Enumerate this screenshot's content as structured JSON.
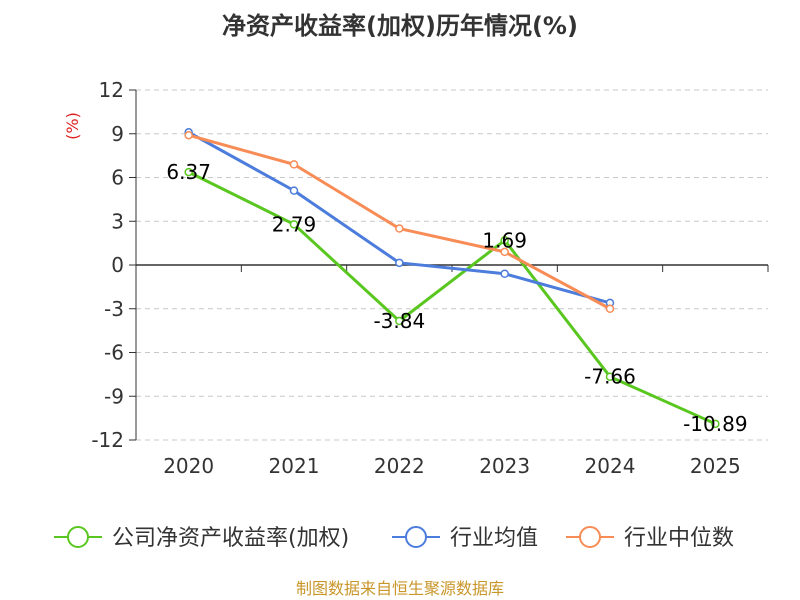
{
  "chart_data": {
    "type": "line",
    "title": "净资产收益率(加权)历年情况(%)",
    "unit_label": "(%)",
    "categories": [
      "2020",
      "2021",
      "2022",
      "2023",
      "2024",
      "2025"
    ],
    "ylim": [
      -12,
      12
    ],
    "yticks": [
      12,
      9,
      6,
      3,
      0,
      -3,
      -6,
      -9,
      -12
    ],
    "grid": true,
    "legend_position": "bottom",
    "series": [
      {
        "name": "公司净资产收益率(加权)",
        "color": "#5ac721",
        "values": [
          6.37,
          2.79,
          -3.84,
          1.69,
          -7.66,
          -10.89
        ],
        "labels": [
          "6.37",
          "2.79",
          "-3.84",
          "1.69",
          "-7.66",
          "-10.89"
        ]
      },
      {
        "name": "行业均值",
        "color": "#4c7cdc",
        "values": [
          9.1,
          5.1,
          0.15,
          -0.6,
          -2.6,
          null
        ]
      },
      {
        "name": "行业中位数",
        "color": "#f88c56",
        "values": [
          8.9,
          6.9,
          2.5,
          0.9,
          -3.0,
          null
        ]
      }
    ],
    "source": "制图数据来自恒生聚源数据库",
    "unit_color": "#e02020",
    "source_color": "#c8962a"
  }
}
